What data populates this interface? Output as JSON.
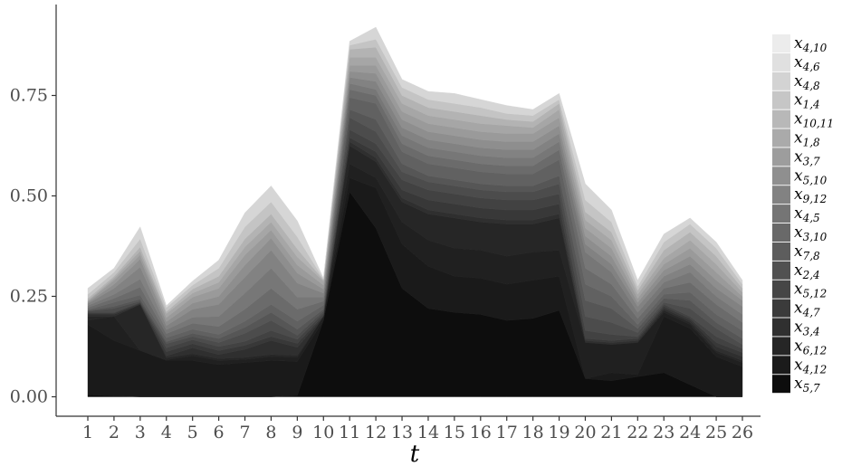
{
  "chart_data": {
    "type": "area",
    "stacked": true,
    "title": "",
    "xlabel": "t",
    "ylabel": "",
    "x": [
      1,
      2,
      3,
      4,
      5,
      6,
      7,
      8,
      9,
      10,
      11,
      12,
      13,
      14,
      15,
      16,
      17,
      18,
      19,
      20,
      21,
      22,
      23,
      24,
      25,
      26
    ],
    "ylim": [
      0,
      0.92
    ],
    "yticks": [
      0.0,
      0.25,
      0.5,
      0.75
    ],
    "ytick_labels": [
      "0.00",
      "0.25",
      "0.50",
      "0.75"
    ],
    "grid": false,
    "legend_position": "right",
    "series": [
      {
        "name": "5,7",
        "color": "#0d0d0d",
        "values": [
          0.005,
          0.002,
          0.0,
          0.0,
          0.0,
          0.0,
          0.0,
          0.0,
          0.003,
          0.19,
          0.51,
          0.42,
          0.27,
          0.22,
          0.21,
          0.205,
          0.19,
          0.195,
          0.215,
          0.045,
          0.04,
          0.05,
          0.06,
          0.03,
          0.0,
          0.0
        ]
      },
      {
        "name": "4,12",
        "color": "#1a1a1a",
        "values": [
          0.175,
          0.138,
          0.115,
          0.09,
          0.09,
          0.08,
          0.085,
          0.09,
          0.085,
          0.0,
          0.035,
          0.1,
          0.11,
          0.105,
          0.09,
          0.09,
          0.09,
          0.095,
          0.085,
          0.0,
          0.02,
          0.005,
          0.14,
          0.14,
          0.1,
          0.075
        ]
      },
      {
        "name": "6,12",
        "color": "#202020",
        "values": [
          0.01,
          0.06,
          0.0,
          0.002,
          0.012,
          0.01,
          0.008,
          0.01,
          0.01,
          0.01,
          0.035,
          0.025,
          0.055,
          0.065,
          0.07,
          0.07,
          0.07,
          0.07,
          0.065,
          0.09,
          0.07,
          0.08,
          0.01,
          0.01,
          0.01,
          0.01
        ]
      },
      {
        "name": "3,4",
        "color": "#262626",
        "values": [
          0.01,
          0.0,
          0.115,
          0.005,
          0.005,
          0.005,
          0.005,
          0.005,
          0.005,
          0.0,
          0.045,
          0.04,
          0.05,
          0.065,
          0.075,
          0.07,
          0.08,
          0.07,
          0.08,
          0.0,
          0.0,
          0.0,
          0.005,
          0.005,
          0.005,
          0.005
        ]
      },
      {
        "name": "4,7",
        "color": "#2f2f2f",
        "values": [
          0.005,
          0.005,
          0.0,
          0.005,
          0.015,
          0.01,
          0.02,
          0.035,
          0.02,
          0.0,
          0.01,
          0.01,
          0.01,
          0.01,
          0.01,
          0.01,
          0.01,
          0.01,
          0.01,
          0.005,
          0.005,
          0.005,
          0.005,
          0.005,
          0.01,
          0.01
        ]
      },
      {
        "name": "5,12",
        "color": "#383838",
        "values": [
          0.003,
          0.003,
          0.003,
          0.01,
          0.01,
          0.01,
          0.01,
          0.01,
          0.01,
          0.003,
          0.01,
          0.015,
          0.02,
          0.025,
          0.025,
          0.025,
          0.025,
          0.025,
          0.025,
          0.005,
          0.005,
          0.005,
          0.005,
          0.005,
          0.01,
          0.01
        ]
      },
      {
        "name": "2,4",
        "color": "#424242",
        "values": [
          0.002,
          0.002,
          0.002,
          0.01,
          0.01,
          0.01,
          0.01,
          0.015,
          0.01,
          0.005,
          0.02,
          0.02,
          0.025,
          0.025,
          0.025,
          0.025,
          0.025,
          0.025,
          0.025,
          0.02,
          0.015,
          0.005,
          0.005,
          0.005,
          0.015,
          0.01
        ]
      },
      {
        "name": "7,8",
        "color": "#4c4c4c",
        "values": [
          0.003,
          0.01,
          0.003,
          0.01,
          0.008,
          0.01,
          0.02,
          0.025,
          0.01,
          0.005,
          0.03,
          0.03,
          0.02,
          0.02,
          0.02,
          0.02,
          0.02,
          0.02,
          0.025,
          0.035,
          0.03,
          0.01,
          0.005,
          0.02,
          0.02,
          0.01
        ]
      },
      {
        "name": "3,10",
        "color": "#565656",
        "values": [
          0.002,
          0.005,
          0.005,
          0.005,
          0.008,
          0.01,
          0.015,
          0.02,
          0.015,
          0.005,
          0.02,
          0.03,
          0.02,
          0.015,
          0.015,
          0.015,
          0.015,
          0.015,
          0.02,
          0.04,
          0.035,
          0.01,
          0.01,
          0.02,
          0.015,
          0.015
        ]
      },
      {
        "name": "4,5",
        "color": "#616161",
        "values": [
          0.002,
          0.01,
          0.01,
          0.01,
          0.01,
          0.01,
          0.015,
          0.02,
          0.02,
          0.01,
          0.03,
          0.04,
          0.03,
          0.03,
          0.03,
          0.03,
          0.03,
          0.03,
          0.04,
          0.04,
          0.03,
          0.01,
          0.01,
          0.02,
          0.02,
          0.02
        ]
      },
      {
        "name": "9,12",
        "color": "#6b6b6b",
        "values": [
          0.005,
          0.01,
          0.02,
          0.01,
          0.015,
          0.02,
          0.03,
          0.04,
          0.03,
          0.01,
          0.02,
          0.02,
          0.02,
          0.02,
          0.02,
          0.02,
          0.02,
          0.02,
          0.025,
          0.04,
          0.03,
          0.015,
          0.015,
          0.025,
          0.025,
          0.02
        ]
      },
      {
        "name": "5,10",
        "color": "#777777",
        "values": [
          0.005,
          0.01,
          0.02,
          0.01,
          0.015,
          0.025,
          0.04,
          0.05,
          0.03,
          0.01,
          0.015,
          0.015,
          0.02,
          0.02,
          0.02,
          0.02,
          0.02,
          0.02,
          0.02,
          0.04,
          0.03,
          0.015,
          0.015,
          0.025,
          0.02,
          0.02
        ]
      },
      {
        "name": "3,7",
        "color": "#828282",
        "values": [
          0.005,
          0.015,
          0.03,
          0.01,
          0.02,
          0.03,
          0.04,
          0.045,
          0.035,
          0.01,
          0.015,
          0.02,
          0.02,
          0.02,
          0.02,
          0.02,
          0.02,
          0.02,
          0.02,
          0.02,
          0.02,
          0.015,
          0.015,
          0.02,
          0.02,
          0.02
        ]
      },
      {
        "name": "1,8",
        "color": "#8e8e8e",
        "values": [
          0.003,
          0.01,
          0.02,
          0.01,
          0.015,
          0.02,
          0.03,
          0.03,
          0.025,
          0.01,
          0.015,
          0.02,
          0.02,
          0.02,
          0.02,
          0.02,
          0.02,
          0.02,
          0.02,
          0.02,
          0.02,
          0.01,
          0.015,
          0.02,
          0.02,
          0.015
        ]
      },
      {
        "name": "10,11",
        "color": "#9a9a9a",
        "values": [
          0.003,
          0.01,
          0.01,
          0.01,
          0.015,
          0.02,
          0.025,
          0.02,
          0.02,
          0.01,
          0.015,
          0.02,
          0.02,
          0.02,
          0.02,
          0.02,
          0.02,
          0.02,
          0.02,
          0.02,
          0.02,
          0.01,
          0.015,
          0.02,
          0.02,
          0.01
        ]
      },
      {
        "name": "1,4",
        "color": "#a6a6a6",
        "values": [
          0.002,
          0.005,
          0.01,
          0.01,
          0.01,
          0.015,
          0.02,
          0.02,
          0.02,
          0.01,
          0.02,
          0.02,
          0.02,
          0.02,
          0.02,
          0.02,
          0.02,
          0.015,
          0.02,
          0.02,
          0.02,
          0.01,
          0.015,
          0.02,
          0.02,
          0.01
        ]
      },
      {
        "name": "4,8",
        "color": "#b3b3b3",
        "values": [
          0.005,
          0.005,
          0.01,
          0.005,
          0.01,
          0.015,
          0.02,
          0.02,
          0.02,
          0.003,
          0.02,
          0.025,
          0.02,
          0.02,
          0.02,
          0.02,
          0.015,
          0.015,
          0.015,
          0.02,
          0.02,
          0.01,
          0.02,
          0.02,
          0.02,
          0.01
        ]
      },
      {
        "name": "4,6",
        "color": "#c4c4c4",
        "values": [
          0.01,
          0.01,
          0.02,
          0.01,
          0.01,
          0.02,
          0.03,
          0.03,
          0.03,
          0.002,
          0.01,
          0.02,
          0.02,
          0.02,
          0.02,
          0.02,
          0.015,
          0.015,
          0.01,
          0.03,
          0.025,
          0.01,
          0.02,
          0.02,
          0.02,
          0.01
        ]
      },
      {
        "name": "4,10",
        "color": "#d6d6d6",
        "values": [
          0.015,
          0.01,
          0.03,
          0.005,
          0.01,
          0.02,
          0.035,
          0.04,
          0.04,
          0.002,
          0.01,
          0.03,
          0.02,
          0.02,
          0.025,
          0.02,
          0.02,
          0.015,
          0.015,
          0.04,
          0.03,
          0.015,
          0.02,
          0.015,
          0.015,
          0.01
        ]
      }
    ],
    "legend_order": [
      "4,10",
      "4,6",
      "4,8",
      "1,4",
      "10,11",
      "1,8",
      "3,7",
      "5,10",
      "9,12",
      "4,5",
      "3,10",
      "7,8",
      "2,4",
      "5,12",
      "4,7",
      "3,4",
      "6,12",
      "4,12",
      "5,7"
    ],
    "legend_colors": {
      "4,10": "#ececec",
      "4,6": "#e0e0e0",
      "4,8": "#d3d3d3",
      "1,4": "#c6c6c6",
      "10,11": "#b8b8b8",
      "1,8": "#aaaaaa",
      "3,7": "#9d9d9d",
      "5,10": "#8f8f8f",
      "9,12": "#828282",
      "4,5": "#757575",
      "3,10": "#696969",
      "7,8": "#5d5d5d",
      "2,4": "#515151",
      "5,12": "#464646",
      "4,7": "#3b3b3b",
      "3,4": "#303030",
      "6,12": "#262626",
      "4,12": "#1b1b1b",
      "5,7": "#0d0d0d"
    },
    "legend_symbol": "x"
  }
}
